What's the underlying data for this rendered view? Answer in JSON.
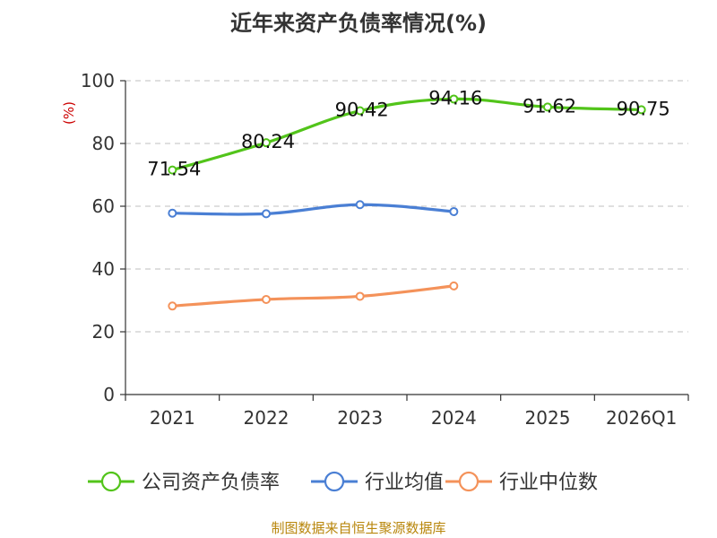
{
  "chart_data": {
    "type": "line",
    "title": "近年来资产负债率情况(%)",
    "ylabel": "(%)",
    "categories": [
      "2021",
      "2022",
      "2023",
      "2024",
      "2025",
      "2026Q1"
    ],
    "ylim": [
      0,
      100
    ],
    "yticks": [
      0,
      20,
      40,
      60,
      80,
      100
    ],
    "grid": true,
    "legend_position": "bottom",
    "series": [
      {
        "name": "公司资产负债率",
        "color": "#52c41a",
        "values": [
          71.54,
          80.24,
          90.42,
          94.16,
          91.62,
          90.75
        ],
        "labels": [
          "71.54",
          "80.24",
          "90.42",
          "94.16",
          "91.62",
          "90.75"
        ]
      },
      {
        "name": "行业均值",
        "color": "#4a7fd4",
        "values": [
          57.8,
          57.6,
          60.5,
          58.3,
          null,
          null
        ]
      },
      {
        "name": "行业中位数",
        "color": "#f4925a",
        "values": [
          28.2,
          30.3,
          31.3,
          34.6,
          null,
          null
        ]
      }
    ],
    "unit_color": "#cc0000"
  },
  "footer": {
    "source": "制图数据来自恒生聚源数据库",
    "source_color": "#b8860b"
  }
}
